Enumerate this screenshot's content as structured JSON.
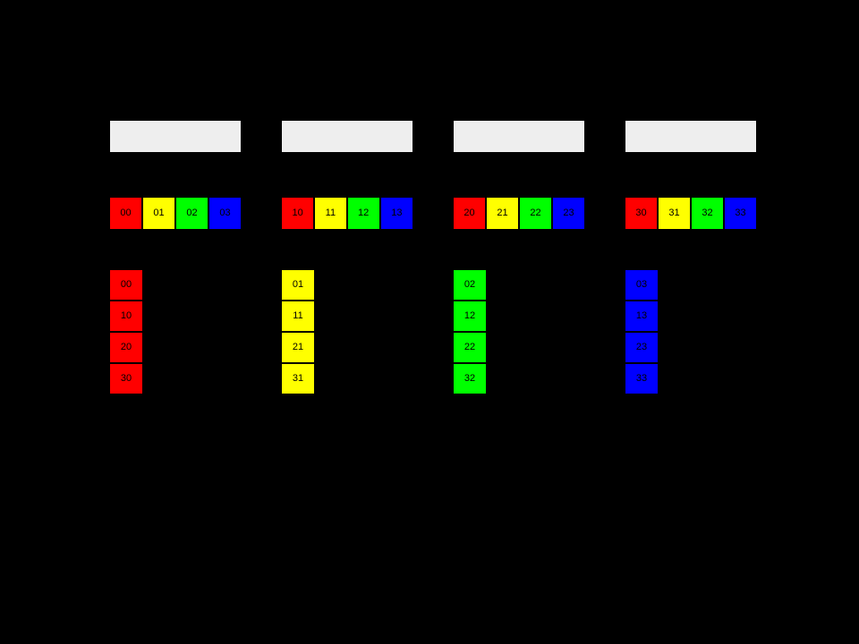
{
  "slide": {
    "background": "#000000"
  },
  "palette": {
    "red": "#ff0000",
    "yellow": "#ffff00",
    "green": "#00ff00",
    "blue": "#0000ff",
    "header_box": "#eeeeee",
    "cell_text": "#000000"
  },
  "groups": [
    {
      "row": [
        {
          "label": "00",
          "color": "red"
        },
        {
          "label": "01",
          "color": "yellow"
        },
        {
          "label": "02",
          "color": "green"
        },
        {
          "label": "03",
          "color": "blue"
        }
      ],
      "column": {
        "color": "red",
        "cells": [
          {
            "label": "00"
          },
          {
            "label": "10"
          },
          {
            "label": "20"
          },
          {
            "label": "30"
          }
        ]
      }
    },
    {
      "row": [
        {
          "label": "10",
          "color": "red"
        },
        {
          "label": "11",
          "color": "yellow"
        },
        {
          "label": "12",
          "color": "green"
        },
        {
          "label": "13",
          "color": "blue"
        }
      ],
      "column": {
        "color": "yellow",
        "cells": [
          {
            "label": "01"
          },
          {
            "label": "11"
          },
          {
            "label": "21"
          },
          {
            "label": "31"
          }
        ]
      }
    },
    {
      "row": [
        {
          "label": "20",
          "color": "red"
        },
        {
          "label": "21",
          "color": "yellow"
        },
        {
          "label": "22",
          "color": "green"
        },
        {
          "label": "23",
          "color": "blue"
        }
      ],
      "column": {
        "color": "green",
        "cells": [
          {
            "label": "02"
          },
          {
            "label": "12"
          },
          {
            "label": "22"
          },
          {
            "label": "32"
          }
        ]
      }
    },
    {
      "row": [
        {
          "label": "30",
          "color": "red"
        },
        {
          "label": "31",
          "color": "yellow"
        },
        {
          "label": "32",
          "color": "green"
        },
        {
          "label": "33",
          "color": "blue"
        }
      ],
      "column": {
        "color": "blue",
        "cells": [
          {
            "label": "03"
          },
          {
            "label": "13"
          },
          {
            "label": "23"
          },
          {
            "label": "33"
          }
        ]
      }
    }
  ]
}
